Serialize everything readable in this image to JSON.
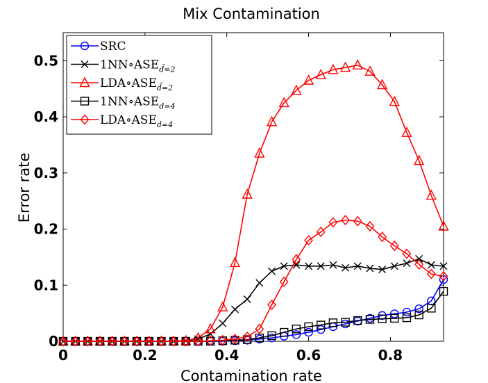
{
  "chart_data": {
    "type": "line",
    "title": "Mix Contamination",
    "xlabel": "Contamination rate",
    "ylabel": "Error rate",
    "xlim": [
      0,
      0.93
    ],
    "ylim": [
      0,
      0.55
    ],
    "xticks": [
      0,
      0.2,
      0.4,
      0.6,
      0.8
    ],
    "xtick_labels": [
      "0",
      "0.2",
      "0.4",
      "0.6",
      "0.8"
    ],
    "yticks": [
      0,
      0.1,
      0.2,
      0.3,
      0.4,
      0.5
    ],
    "ytick_labels": [
      "0",
      "0.1",
      "0.2",
      "0.3",
      "0.4",
      "0.5"
    ],
    "grid": false,
    "legend_position": "top-left",
    "x": [
      0,
      0.03,
      0.06,
      0.09,
      0.12,
      0.15,
      0.18,
      0.21,
      0.24,
      0.27,
      0.3,
      0.33,
      0.36,
      0.39,
      0.42,
      0.45,
      0.48,
      0.51,
      0.54,
      0.57,
      0.6,
      0.63,
      0.66,
      0.69,
      0.72,
      0.75,
      0.78,
      0.81,
      0.84,
      0.87,
      0.9,
      0.93
    ],
    "series": [
      {
        "name": "SRC",
        "legend_main": "SRC",
        "legend_sub": "",
        "color": "#0000ff",
        "marker": "circle",
        "values": [
          0,
          0,
          0,
          0,
          0,
          0,
          0,
          0,
          0,
          0,
          0,
          0,
          0,
          0,
          0.001,
          0.002,
          0.004,
          0.006,
          0.009,
          0.012,
          0.016,
          0.021,
          0.026,
          0.031,
          0.036,
          0.041,
          0.046,
          0.049,
          0.052,
          0.058,
          0.072,
          0.11
        ]
      },
      {
        "name": "1NN∘ASE d̂=2",
        "legend_main": "1NN∘ASE",
        "legend_sub": "d̂=2",
        "color": "#000000",
        "marker": "x",
        "values": [
          0,
          0,
          0,
          0,
          0,
          0,
          0,
          0,
          0,
          0,
          0.001,
          0.004,
          0.013,
          0.032,
          0.057,
          0.075,
          0.104,
          0.125,
          0.134,
          0.136,
          0.134,
          0.134,
          0.136,
          0.131,
          0.134,
          0.13,
          0.128,
          0.134,
          0.139,
          0.147,
          0.136,
          0.134
        ]
      },
      {
        "name": "LDA∘ASE d̂=2",
        "legend_main": "LDA∘ASE",
        "legend_sub": "d̂=2",
        "color": "#ff0000",
        "marker": "triangle",
        "values": [
          0,
          0,
          0,
          0,
          0,
          0,
          0,
          0,
          0,
          0,
          0.001,
          0.006,
          0.022,
          0.061,
          0.14,
          0.262,
          0.335,
          0.391,
          0.425,
          0.447,
          0.465,
          0.475,
          0.484,
          0.488,
          0.492,
          0.481,
          0.457,
          0.427,
          0.372,
          0.322,
          0.26,
          0.205
        ]
      },
      {
        "name": "1NN∘ASE d=4",
        "legend_main": "1NN∘ASE",
        "legend_sub": "d=4",
        "color": "#000000",
        "marker": "square",
        "values": [
          0,
          0,
          0,
          0,
          0,
          0,
          0,
          0,
          0,
          0,
          0,
          0,
          0,
          0.001,
          0.002,
          0.003,
          0.006,
          0.01,
          0.016,
          0.022,
          0.026,
          0.029,
          0.033,
          0.034,
          0.037,
          0.039,
          0.04,
          0.041,
          0.042,
          0.047,
          0.059,
          0.089
        ]
      },
      {
        "name": "LDA∘ASE d=4",
        "legend_main": "LDA∘ASE",
        "legend_sub": "d=4",
        "color": "#ff0000",
        "marker": "diamond",
        "values": [
          0,
          0,
          0,
          0,
          0,
          0,
          0,
          0,
          0,
          0,
          0,
          0,
          0.001,
          0.002,
          0.004,
          0.008,
          0.022,
          0.065,
          0.106,
          0.146,
          0.18,
          0.195,
          0.212,
          0.216,
          0.214,
          0.205,
          0.186,
          0.17,
          0.156,
          0.137,
          0.12,
          0.116
        ]
      }
    ]
  }
}
